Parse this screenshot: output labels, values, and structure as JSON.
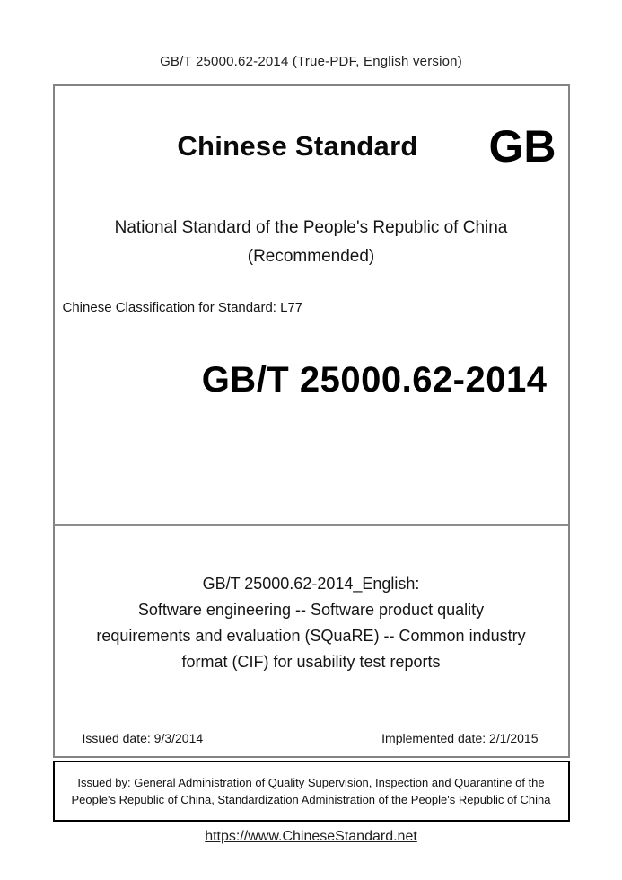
{
  "page": {
    "header": "GB/T 25000.62-2014 (True-PDF, English version)",
    "footer_link": "https://www.ChineseStandard.net"
  },
  "cover": {
    "brand": "Chinese Standard",
    "gb_logo": "GB",
    "national_line1": "National Standard of the People's Republic of China",
    "national_line2": "(Recommended)",
    "classification": "Chinese Classification for Standard: L77",
    "standard_number": "GB/T 25000.62-2014",
    "title_lines": [
      "GB/T 25000.62-2014_English:",
      "Software engineering -- Software product quality",
      "requirements and evaluation (SQuaRE) -- Common industry",
      "format (CIF) for usability test reports"
    ],
    "issued_date": "Issued date: 9/3/2014",
    "implemented_date": "Implemented date: 2/1/2015",
    "issued_by": "Issued by: General Administration of Quality Supervision, Inspection and Quarantine of the People's Republic of China, Standardization Administration of the People's Republic of China"
  }
}
